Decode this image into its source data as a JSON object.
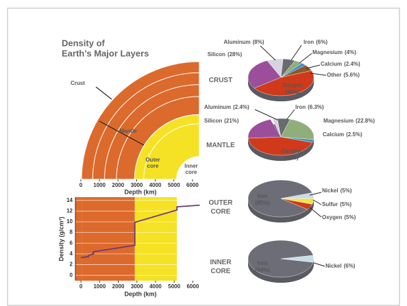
{
  "title": [
    "Density of",
    "Earth’s Major Layers"
  ],
  "chart_data": [
    {
      "type": "cross-section",
      "layers": [
        {
          "label": [
            "Crust"
          ],
          "depth": 35,
          "color": "#dc6a2c"
        },
        {
          "label": [
            "Mantle"
          ],
          "depth": 2890,
          "color": "#dc6a2c"
        },
        {
          "label": [
            "Outer",
            "core"
          ],
          "depth": 5150,
          "color": "#f5e224"
        },
        {
          "label": [
            "Inner",
            "core"
          ],
          "depth": 6371,
          "color": "#ffffff"
        }
      ],
      "xlim": [
        0,
        6371
      ],
      "xticks": [
        0,
        1000,
        2000,
        3000,
        4000,
        5000,
        6000
      ],
      "xlabel": "Depth (km)"
    },
    {
      "type": "line",
      "x": [
        0,
        400,
        400,
        670,
        670,
        2890,
        2890,
        5150,
        5150,
        6371
      ],
      "values": [
        3.3,
        3.5,
        3.7,
        4.0,
        4.4,
        5.6,
        9.9,
        12.2,
        12.8,
        13.1
      ],
      "color": "#6b3a7a",
      "xlim": [
        -300,
        6500
      ],
      "xticks": [
        0,
        1000,
        2000,
        3000,
        4000,
        5000,
        6000
      ],
      "ylim": [
        -1,
        14.6
      ],
      "yticks": [
        0,
        2,
        4,
        6,
        8,
        10,
        12,
        14
      ],
      "xlabel": "Depth (km)",
      "ylabel": "Density (g/cm³)"
    },
    {
      "type": "pie",
      "title": [
        "CRUST"
      ],
      "categories": [
        "Aluminum",
        "Iron",
        "Magnesium",
        "Calcium",
        "Other",
        "Oxygen",
        "Silicon"
      ],
      "values": [
        8,
        6,
        4,
        2.4,
        5.6,
        46,
        28
      ],
      "value_labels": [
        "(8%)",
        "(6%)",
        "(4%)",
        "(2.4%)",
        "(5.6%)",
        "(46%)",
        "(28%)"
      ],
      "colors": [
        "#d9d2e2",
        "#6a6a72",
        "#8fae7a",
        "#3a8fc8",
        "#8a5a2a",
        "#d03a1a",
        "#9b4f9b"
      ]
    },
    {
      "type": "pie",
      "title": [
        "MANTLE"
      ],
      "categories": [
        "Aluminum",
        "Iron",
        "Magnesium",
        "Calcium",
        "Oxygen",
        "Silicon"
      ],
      "values": [
        2.4,
        6.3,
        22.8,
        2.5,
        44,
        21
      ],
      "value_labels": [
        "(2.4%)",
        "(6.3%)",
        "(22.8%)",
        "(2.5%)",
        "(44%)",
        "(21%)"
      ],
      "colors": [
        "#d9d2e2",
        "#6a6a72",
        "#8fae7a",
        "#3a8fc8",
        "#d03a1a",
        "#9b4f9b"
      ]
    },
    {
      "type": "pie",
      "title": [
        "OUTER",
        "CORE"
      ],
      "categories": [
        "Iron",
        "Nickel",
        "Sulfur",
        "Oxygen"
      ],
      "values": [
        85,
        5,
        5,
        5
      ],
      "value_labels": [
        "(85%)",
        "(5%)",
        "(5%)",
        "(5%)"
      ],
      "colors": [
        "#6d6d78",
        "#c8dce8",
        "#f2e34a",
        "#d03a1a"
      ]
    },
    {
      "type": "pie",
      "title": [
        "INNER",
        "CORE"
      ],
      "categories": [
        "Iron",
        "Nickel"
      ],
      "values": [
        94,
        6
      ],
      "value_labels": [
        "(94%)",
        "(6%)"
      ],
      "colors": [
        "#6d6d78",
        "#c8dce8"
      ]
    }
  ]
}
